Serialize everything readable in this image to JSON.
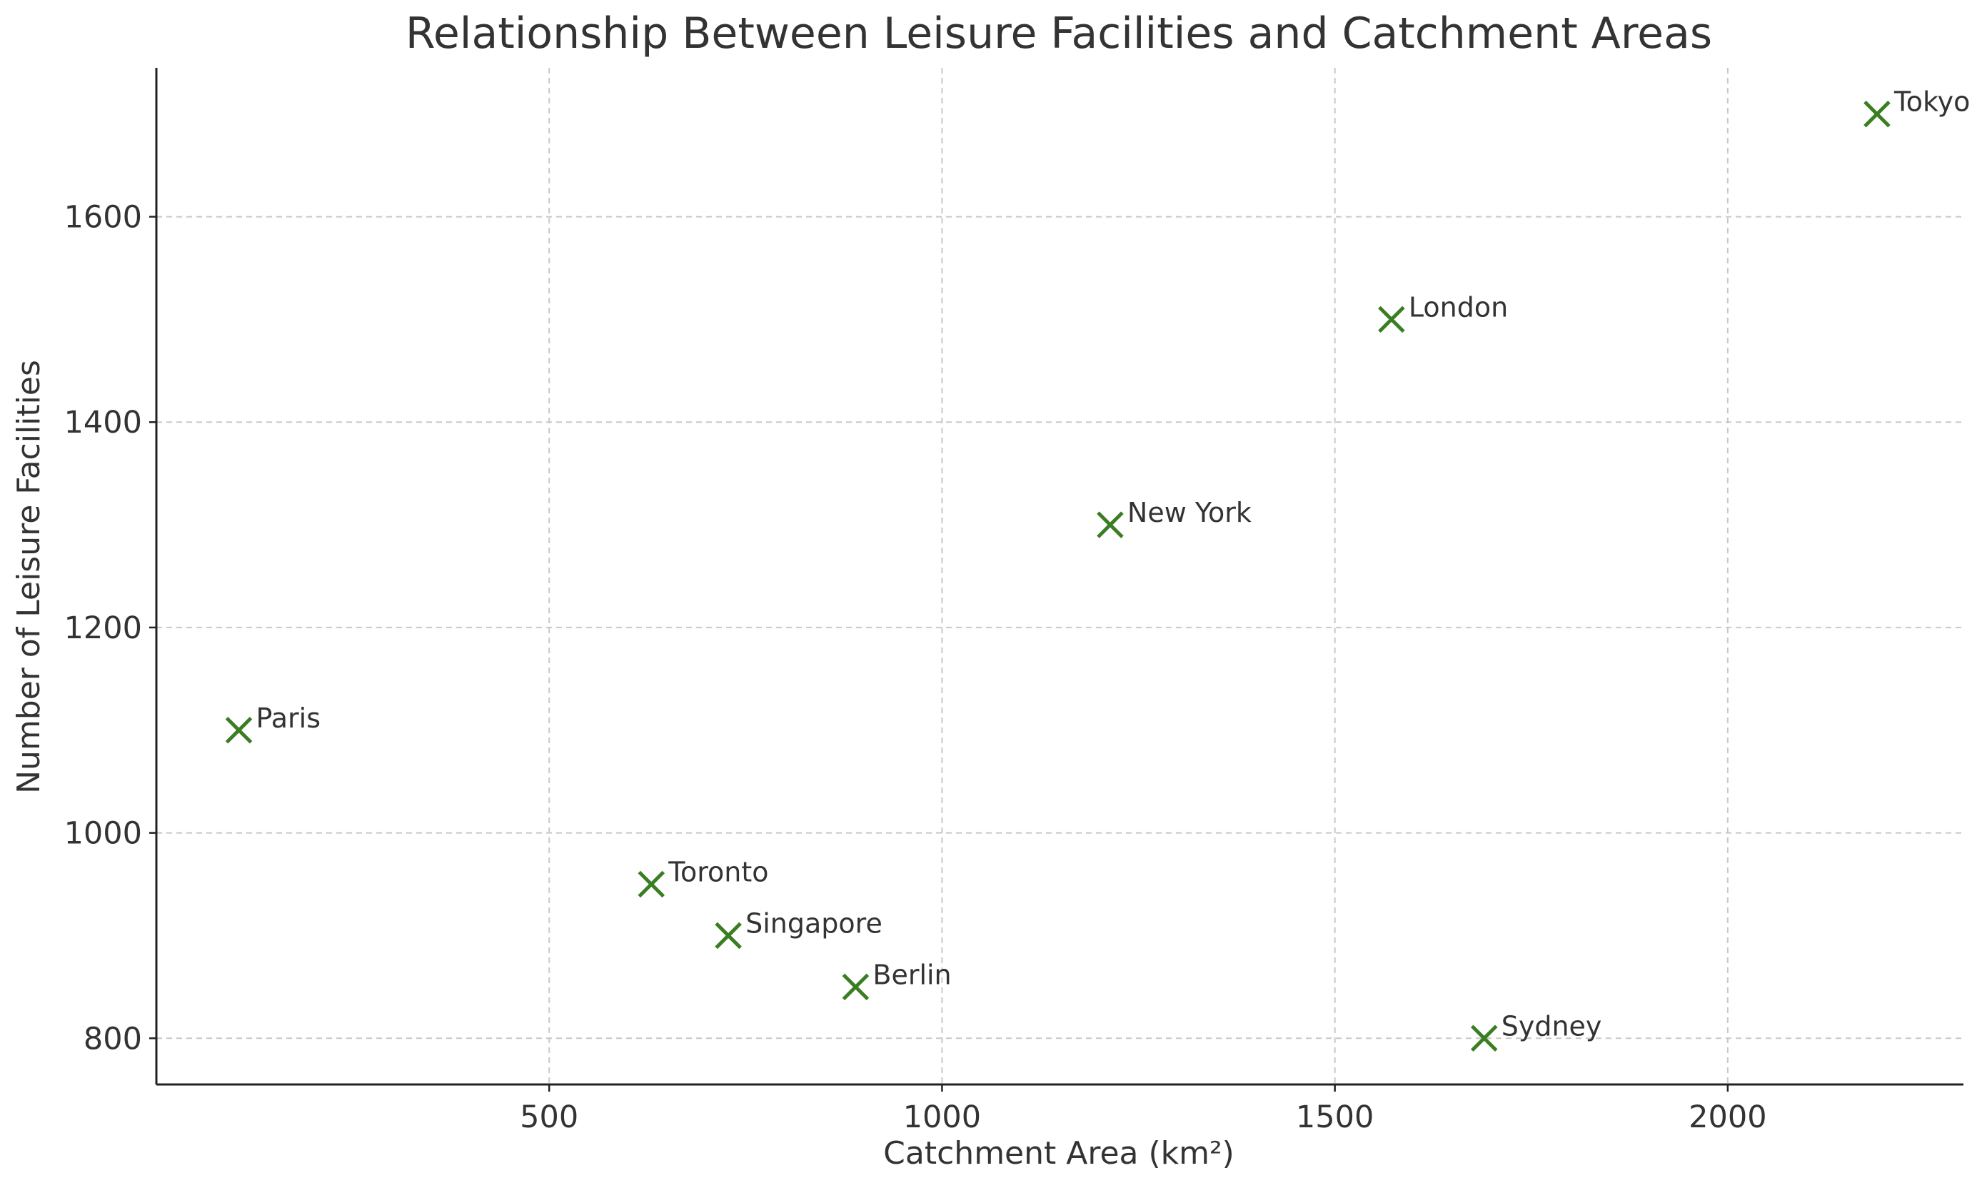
{
  "chart_data": {
    "type": "scatter",
    "title": "Relationship Between Leisure Facilities and Catchment Areas",
    "xlabel": "Catchment Area (km²)",
    "ylabel": "Number of Leisure Facilities",
    "xlim": [
      0,
      2300
    ],
    "ylim": [
      755,
      1745
    ],
    "xticks": [
      500,
      1000,
      1500,
      2000
    ],
    "yticks": [
      800,
      1000,
      1200,
      1400,
      1600
    ],
    "grid": true,
    "marker": "x",
    "marker_color": "#3a7d22",
    "points": [
      {
        "label": "Tokyo",
        "x": 2190,
        "y": 1700
      },
      {
        "label": "London",
        "x": 1572,
        "y": 1500
      },
      {
        "label": "New York",
        "x": 1214,
        "y": 1300
      },
      {
        "label": "Paris",
        "x": 105,
        "y": 1100
      },
      {
        "label": "Toronto",
        "x": 630,
        "y": 950
      },
      {
        "label": "Singapore",
        "x": 728,
        "y": 900
      },
      {
        "label": "Berlin",
        "x": 890,
        "y": 850
      },
      {
        "label": "Sydney",
        "x": 1690,
        "y": 800
      }
    ]
  }
}
